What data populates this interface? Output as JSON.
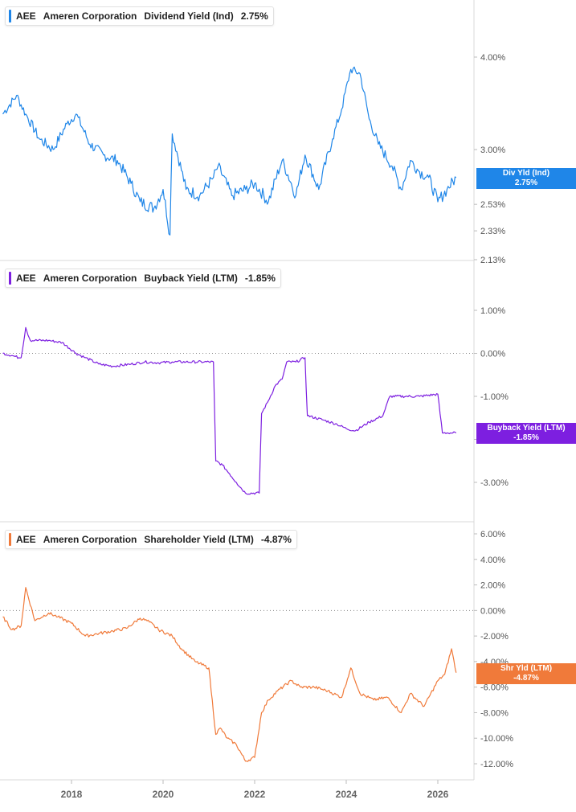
{
  "x_ticks": [
    "2018",
    "2020",
    "2022",
    "2024",
    "2026"
  ],
  "colors": {
    "dividend": "#1f86e8",
    "buyback": "#7d1fe0",
    "shareholder": "#f07a3a",
    "grid": "#d9d9d9",
    "axis_text": "#555555"
  },
  "panels": [
    {
      "ticker": "AEE",
      "company": "Ameren Corporation",
      "metric": "Dividend Yield (Ind)",
      "value": "2.75%",
      "tag_label": "Div Yld (Ind)",
      "tag_value": "2.75%",
      "color": "#1f86e8"
    },
    {
      "ticker": "AEE",
      "company": "Ameren Corporation",
      "metric": "Buyback Yield (LTM)",
      "value": "-1.85%",
      "tag_label": "Buyback Yield (LTM)",
      "tag_value": "-1.85%",
      "color": "#7d1fe0"
    },
    {
      "ticker": "AEE",
      "company": "Ameren Corporation",
      "metric": "Shareholder Yield (LTM)",
      "value": "-4.87%",
      "tag_label": "Shr Yld (LTM)",
      "tag_value": "-4.87%",
      "color": "#f07a3a"
    }
  ],
  "chart_data": [
    {
      "type": "line",
      "title": "AEE Ameren Corporation Dividend Yield (Ind) 2.75%",
      "y_scale": "log",
      "y_ticks": [
        "2.13%",
        "2.33%",
        "2.53%",
        "3.00%",
        "4.00%"
      ],
      "y_tick_values": [
        2.13,
        2.33,
        2.53,
        3.0,
        4.0
      ],
      "series": [
        {
          "name": "Div Yld (Ind)",
          "x": [
            2016.5,
            2016.8,
            2017.0,
            2017.3,
            2017.6,
            2017.9,
            2018.1,
            2018.4,
            2018.7,
            2019.0,
            2019.3,
            2019.5,
            2019.8,
            2020.0,
            2020.15,
            2020.2,
            2020.5,
            2020.8,
            2021.1,
            2021.2,
            2021.5,
            2021.8,
            2022.0,
            2022.3,
            2022.6,
            2022.9,
            2023.1,
            2023.4,
            2023.7,
            2023.9,
            2024.1,
            2024.3,
            2024.5,
            2024.7,
            2025.0,
            2025.2,
            2025.4,
            2025.6,
            2025.8,
            2026.0,
            2026.2,
            2026.4
          ],
          "y": [
            3.35,
            3.55,
            3.35,
            3.1,
            3.0,
            3.25,
            3.35,
            3.05,
            2.95,
            2.9,
            2.7,
            2.55,
            2.5,
            2.65,
            2.3,
            3.15,
            2.65,
            2.6,
            2.75,
            2.85,
            2.6,
            2.65,
            2.7,
            2.55,
            2.9,
            2.6,
            2.95,
            2.65,
            3.1,
            3.4,
            3.85,
            3.8,
            3.3,
            3.05,
            2.85,
            2.65,
            2.9,
            2.8,
            2.75,
            2.55,
            2.65,
            2.75
          ]
        }
      ]
    },
    {
      "type": "line",
      "title": "AEE Ameren Corporation Buyback Yield (LTM) -1.85%",
      "y_ticks": [
        "1.00%",
        "0.00%",
        "-1.00%",
        "-2.00%",
        "-3.00%"
      ],
      "y_tick_values": [
        1.0,
        0.0,
        -1.0,
        -2.0,
        -3.0
      ],
      "reference_line": 0.0,
      "series": [
        {
          "name": "Buyback Yield (LTM)",
          "x": [
            2016.5,
            2016.7,
            2016.85,
            2016.9,
            2017.0,
            2017.1,
            2017.2,
            2017.5,
            2017.8,
            2018.1,
            2018.3,
            2018.6,
            2018.9,
            2019.3,
            2019.6,
            2019.9,
            2020.2,
            2020.5,
            2020.9,
            2021.1,
            2021.15,
            2021.3,
            2021.45,
            2021.6,
            2021.8,
            2022.1,
            2022.15,
            2022.3,
            2022.45,
            2022.6,
            2022.7,
            2022.9,
            2023.1,
            2023.15,
            2023.5,
            2023.8,
            2024.0,
            2024.2,
            2024.5,
            2024.8,
            2024.95,
            2025.3,
            2025.6,
            2026.0,
            2026.1,
            2026.2,
            2026.4
          ],
          "y": [
            0.0,
            -0.05,
            -0.1,
            -0.1,
            0.6,
            0.3,
            0.3,
            0.3,
            0.25,
            0.0,
            -0.1,
            -0.25,
            -0.3,
            -0.25,
            -0.2,
            -0.22,
            -0.2,
            -0.2,
            -0.2,
            -0.2,
            -2.5,
            -2.6,
            -2.8,
            -3.0,
            -3.25,
            -3.25,
            -1.4,
            -1.1,
            -0.75,
            -0.6,
            -0.2,
            -0.2,
            -0.1,
            -1.45,
            -1.55,
            -1.65,
            -1.75,
            -1.8,
            -1.6,
            -1.45,
            -1.0,
            -1.0,
            -1.0,
            -0.95,
            -1.85,
            -1.85,
            -1.85
          ]
        }
      ]
    },
    {
      "type": "line",
      "title": "AEE Ameren Corporation Shareholder Yield (LTM) -4.87%",
      "y_ticks": [
        "6.00%",
        "4.00%",
        "2.00%",
        "0.00%",
        "-2.00%",
        "-4.00%",
        "-6.00%",
        "-8.00%",
        "-10.00%",
        "-12.00%"
      ],
      "y_tick_values": [
        6,
        4,
        2,
        0,
        -2,
        -4,
        -6,
        -8,
        -10,
        -12
      ],
      "reference_line": 0.0,
      "series": [
        {
          "name": "Shr Yld (LTM)",
          "x": [
            2016.5,
            2016.7,
            2016.9,
            2017.0,
            2017.2,
            2017.5,
            2017.7,
            2018.0,
            2018.3,
            2018.6,
            2018.9,
            2019.2,
            2019.5,
            2019.7,
            2019.9,
            2020.2,
            2020.4,
            2020.7,
            2021.0,
            2021.15,
            2021.25,
            2021.4,
            2021.6,
            2021.8,
            2022.0,
            2022.15,
            2022.3,
            2022.5,
            2022.8,
            2023.0,
            2023.3,
            2023.6,
            2023.9,
            2024.1,
            2024.3,
            2024.6,
            2024.9,
            2025.2,
            2025.4,
            2025.7,
            2026.0,
            2026.15,
            2026.3,
            2026.4
          ],
          "y": [
            -0.5,
            -1.5,
            -1.2,
            1.8,
            -0.8,
            -0.2,
            -0.5,
            -1.0,
            -2.0,
            -1.8,
            -1.6,
            -1.4,
            -0.6,
            -0.9,
            -1.5,
            -2.0,
            -3.0,
            -4.0,
            -4.5,
            -9.7,
            -9.2,
            -10.0,
            -10.5,
            -11.8,
            -11.5,
            -8.0,
            -7.0,
            -6.3,
            -5.5,
            -6.0,
            -6.0,
            -6.3,
            -6.8,
            -4.5,
            -6.5,
            -7.0,
            -6.8,
            -8.0,
            -6.5,
            -7.5,
            -5.5,
            -5.0,
            -3.0,
            -4.87
          ]
        }
      ]
    }
  ]
}
